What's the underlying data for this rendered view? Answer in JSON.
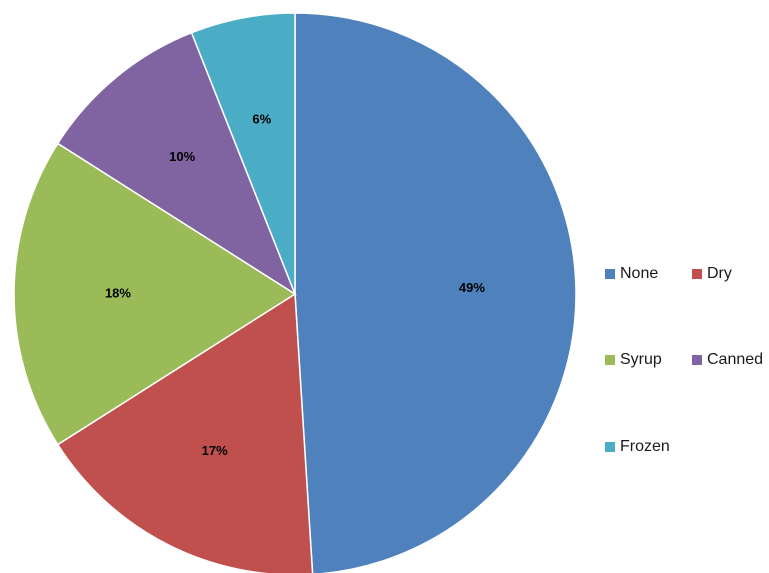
{
  "chart_data": {
    "type": "pie",
    "categories": [
      "None",
      "Dry",
      "Syrup",
      "Canned",
      "Frozen"
    ],
    "values": [
      49,
      17,
      18,
      10,
      6
    ],
    "labels": [
      "49%",
      "17%",
      "18%",
      "10%",
      "6%"
    ],
    "colors": [
      "#4F81BD",
      "#C0504D",
      "#9BBB59",
      "#8064A2",
      "#4BACC6"
    ],
    "legend_position": "right",
    "start": "12 o'clock",
    "direction": "clockwise"
  }
}
